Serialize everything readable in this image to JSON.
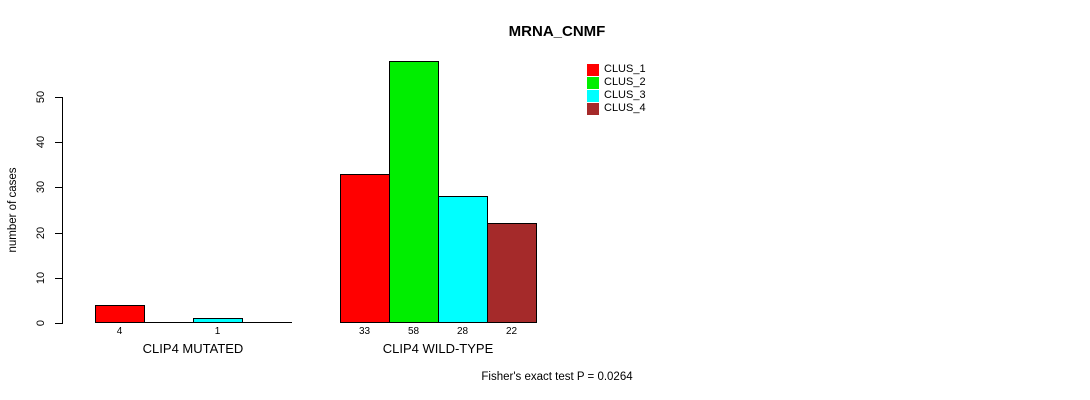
{
  "figure": {
    "background": "#ffffff",
    "text_color": "#000000"
  },
  "chart_data": {
    "type": "bar",
    "title": "MRNA_CNMF",
    "ylabel": "number of cases",
    "xlabel": "",
    "yticks": [
      0,
      10,
      20,
      30,
      40,
      50
    ],
    "ylim": [
      0,
      58
    ],
    "grid": false,
    "legend_position": "top-right",
    "categories": [
      "CLIP4 MUTATED",
      "CLIP4 WILD-TYPE"
    ],
    "series": [
      {
        "name": "CLUS_1",
        "color": "#ff0000",
        "values": [
          4,
          33
        ]
      },
      {
        "name": "CLUS_2",
        "color": "#00ee00",
        "values": [
          0,
          58
        ]
      },
      {
        "name": "CLUS_3",
        "color": "#00ffff",
        "values": [
          1,
          28
        ]
      },
      {
        "name": "CLUS_4",
        "color": "#a52a2a",
        "values": [
          0,
          22
        ]
      }
    ],
    "bar_value_labels": {
      "CLIP4 MUTATED": [
        "4",
        "",
        "1",
        ""
      ],
      "CLIP4 WILD-TYPE": [
        "33",
        "58",
        "28",
        "22"
      ]
    },
    "annotation": "Fisher's exact test P = 0.0264"
  }
}
